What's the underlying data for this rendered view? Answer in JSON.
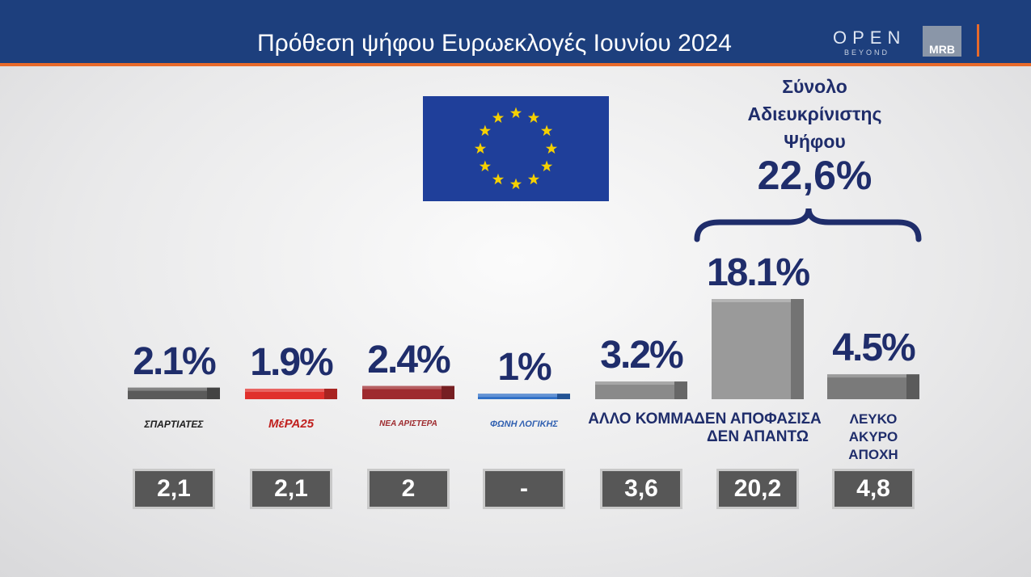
{
  "header": {
    "title": "Πρόθεση ψήφου Ευρωεκλογές Ιουνίου 2024",
    "logo_open": "OPEN",
    "logo_beyond": "BEYOND",
    "logo_mrb": "MRB"
  },
  "chart_data": {
    "type": "bar",
    "categories": [
      "ΣΠΑΡΤΙΑΤΕΣ",
      "ΜέΡΑ25",
      "ΝΕΑ ΑΡΙΣΤΕΡΑ",
      "ΦΩΝΗ ΛΟΓΙΚΗΣ",
      "ΑΛΛΟ ΚΟΜΜΑ",
      "ΔΕΝ ΑΠΟΦΑΣΙΣΑ\nΔΕΝ ΑΠΑΝΤΩ",
      "ΛΕΥΚΟ\nΑΚΥΡΟ\nΑΠΟΧΗ"
    ],
    "values": [
      2.1,
      1.9,
      2.4,
      1,
      3.2,
      18.1,
      4.5
    ],
    "value_labels": [
      "2.1%",
      "1.9%",
      "2.4%",
      "1%",
      "3.2%",
      "18.1%",
      "4.5%"
    ],
    "colors": [
      "#5a5a5a",
      "#e0302c",
      "#9e2a2e",
      "#2f6fc6",
      "#8a8a8a",
      "#9a9a9a",
      "#7a7a7a"
    ],
    "annotation": {
      "text": "Σύνολο\nΑδιευκρίνιστης\nΨήφου",
      "label": "22,6%"
    }
  },
  "previous": [
    "2,1",
    "2,1",
    "2",
    "-",
    "3,6",
    "20,2",
    "4,8"
  ]
}
